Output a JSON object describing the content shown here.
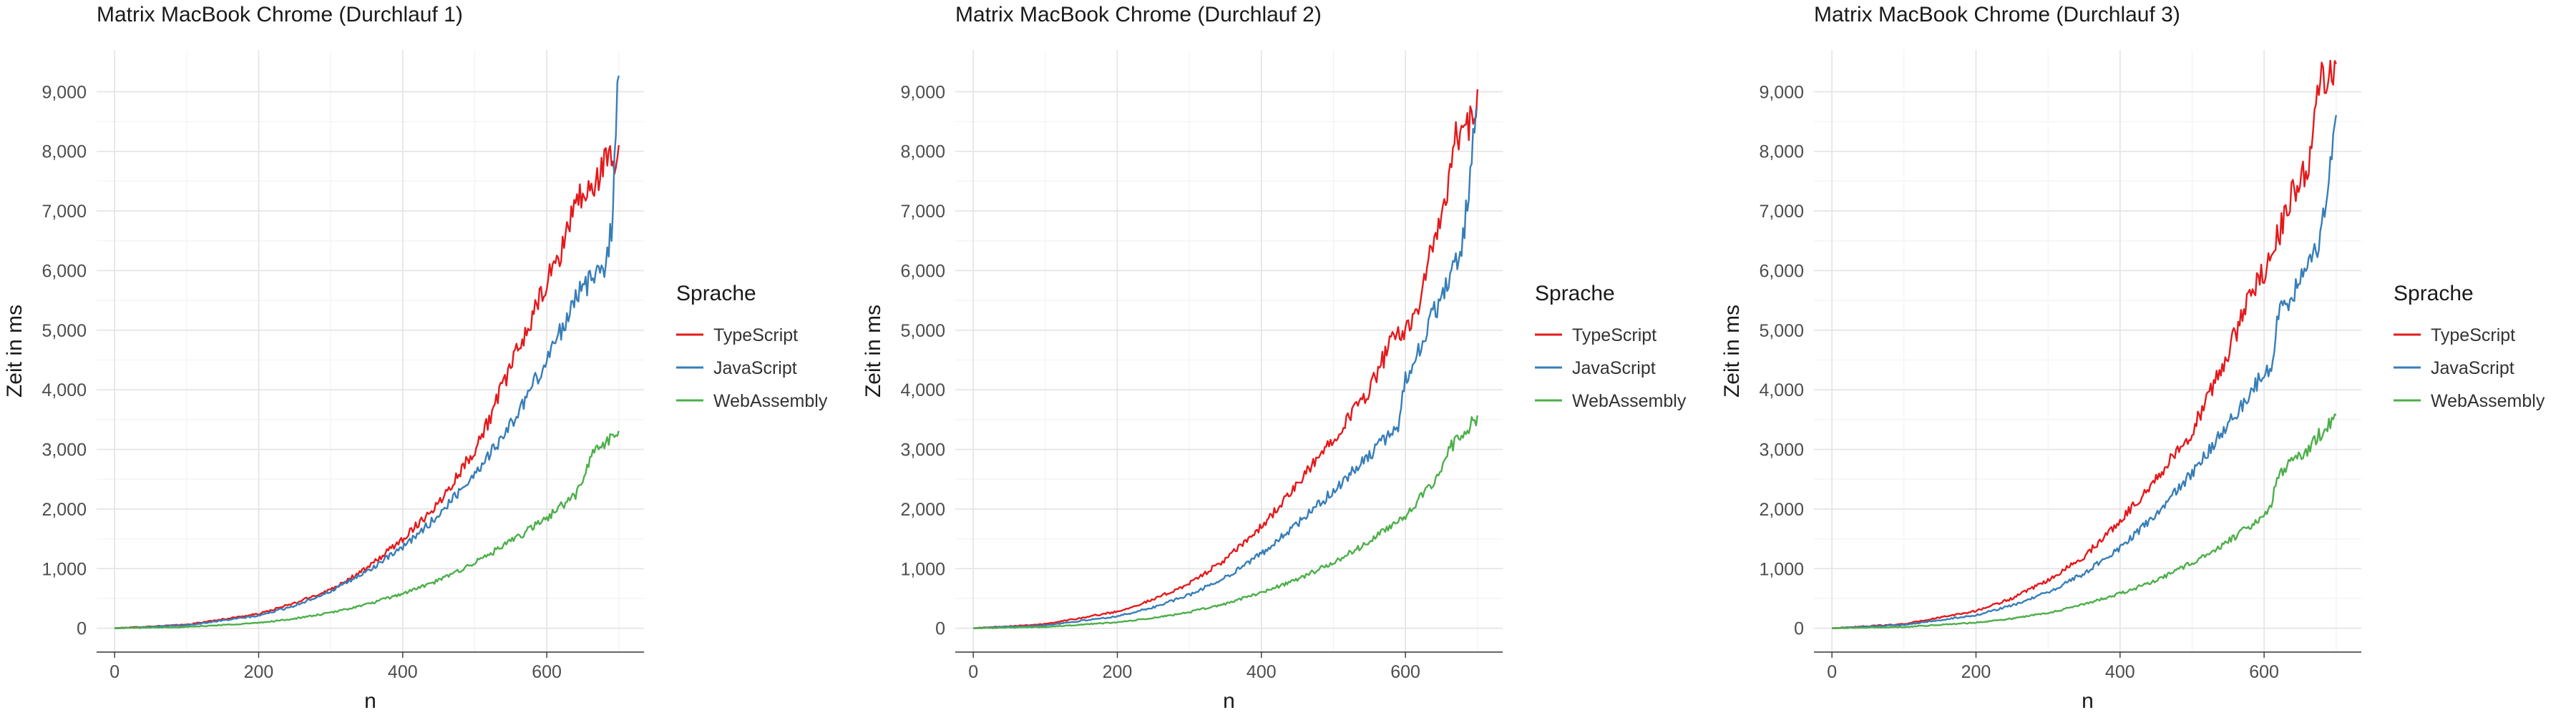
{
  "chart_data": [
    {
      "type": "line",
      "title": "Matrix MacBook Chrome (Durchlauf 1)",
      "xlabel": "n",
      "ylabel": "Zeit in ms",
      "xlim": [
        -25,
        735
      ],
      "ylim": [
        -400,
        9700
      ],
      "xticks": [
        0,
        200,
        400,
        600
      ],
      "xtick_labels": [
        "0",
        "200",
        "400",
        "600"
      ],
      "yticks": [
        0,
        1000,
        2000,
        3000,
        4000,
        5000,
        6000,
        7000,
        8000,
        9000
      ],
      "ytick_labels": [
        "0",
        "1,000",
        "2,000",
        "3,000",
        "4,000",
        "5,000",
        "6,000",
        "7,000",
        "8,000",
        "9,000"
      ],
      "grid": true,
      "legend": {
        "title": "Sprache",
        "position": "right"
      },
      "series": [
        {
          "name": "TypeScript",
          "color": "#e41a1c",
          "x": [
            0,
            100,
            200,
            250,
            300,
            350,
            400,
            450,
            500,
            520,
            550,
            580,
            600,
            620,
            640,
            660,
            680,
            700
          ],
          "y": [
            0,
            60,
            240,
            420,
            650,
            1000,
            1500,
            2100,
            3000,
            3500,
            4400,
            5200,
            5800,
            6300,
            7200,
            7300,
            7800,
            7900
          ]
        },
        {
          "name": "JavaScript",
          "color": "#377eb8",
          "x": [
            0,
            100,
            200,
            250,
            300,
            350,
            400,
            450,
            500,
            550,
            600,
            620,
            640,
            660,
            680,
            690,
            700
          ],
          "y": [
            0,
            50,
            210,
            380,
            620,
            950,
            1350,
            1900,
            2600,
            3400,
            4500,
            5000,
            5600,
            5800,
            6100,
            6700,
            9400
          ]
        },
        {
          "name": "WebAssembly",
          "color": "#4daf4a",
          "x": [
            0,
            100,
            200,
            250,
            300,
            350,
            400,
            450,
            500,
            550,
            600,
            640,
            650,
            660,
            680,
            700
          ],
          "y": [
            0,
            20,
            90,
            160,
            260,
            400,
            580,
            800,
            1100,
            1450,
            1850,
            2250,
            2400,
            2900,
            3100,
            3250
          ]
        }
      ]
    },
    {
      "type": "line",
      "title": "Matrix MacBook Chrome (Durchlauf 2)",
      "xlabel": "n",
      "ylabel": "Zeit in ms",
      "xlim": [
        -25,
        735
      ],
      "ylim": [
        -400,
        9700
      ],
      "xticks": [
        0,
        200,
        400,
        600
      ],
      "xtick_labels": [
        "0",
        "200",
        "400",
        "600"
      ],
      "yticks": [
        0,
        1000,
        2000,
        3000,
        4000,
        5000,
        6000,
        7000,
        8000,
        9000
      ],
      "ytick_labels": [
        "0",
        "1,000",
        "2,000",
        "3,000",
        "4,000",
        "5,000",
        "6,000",
        "7,000",
        "8,000",
        "9,000"
      ],
      "grid": true,
      "legend": {
        "title": "Sprache",
        "position": "right"
      },
      "series": [
        {
          "name": "TypeScript",
          "color": "#e41a1c",
          "x": [
            0,
            100,
            200,
            250,
            300,
            350,
            400,
            450,
            500,
            550,
            580,
            600,
            620,
            640,
            660,
            670,
            680,
            700
          ],
          "y": [
            0,
            70,
            280,
            480,
            750,
            1150,
            1700,
            2400,
            3200,
            4000,
            4800,
            5000,
            5500,
            6500,
            7400,
            8300,
            8200,
            8800
          ]
        },
        {
          "name": "JavaScript",
          "color": "#377eb8",
          "x": [
            0,
            100,
            200,
            250,
            300,
            350,
            400,
            450,
            500,
            550,
            590,
            600,
            620,
            640,
            660,
            680,
            700
          ],
          "y": [
            0,
            50,
            200,
            350,
            560,
            850,
            1250,
            1750,
            2300,
            2900,
            3400,
            4200,
            4700,
            5300,
            5800,
            6500,
            8800
          ]
        },
        {
          "name": "WebAssembly",
          "color": "#4daf4a",
          "x": [
            0,
            100,
            200,
            250,
            300,
            350,
            400,
            450,
            500,
            550,
            600,
            630,
            650,
            660,
            680,
            700
          ],
          "y": [
            0,
            20,
            100,
            170,
            270,
            410,
            600,
            820,
            1100,
            1450,
            1900,
            2300,
            2600,
            3000,
            3300,
            3500
          ]
        }
      ]
    },
    {
      "type": "line",
      "title": "Matrix MacBook Chrome (Durchlauf 3)",
      "xlabel": "n",
      "ylabel": "Zeit in ms",
      "xlim": [
        -25,
        735
      ],
      "ylim": [
        -400,
        9700
      ],
      "xticks": [
        0,
        200,
        400,
        600
      ],
      "xtick_labels": [
        "0",
        "200",
        "400",
        "600"
      ],
      "yticks": [
        0,
        1000,
        2000,
        3000,
        4000,
        5000,
        6000,
        7000,
        8000,
        9000
      ],
      "ytick_labels": [
        "0",
        "1,000",
        "2,000",
        "3,000",
        "4,000",
        "5,000",
        "6,000",
        "7,000",
        "8,000",
        "9,000"
      ],
      "grid": true,
      "legend": {
        "title": "Sprache",
        "position": "right"
      },
      "series": [
        {
          "name": "TypeScript",
          "color": "#e41a1c",
          "x": [
            0,
            100,
            200,
            250,
            300,
            350,
            400,
            450,
            500,
            550,
            580,
            600,
            620,
            640,
            660,
            680,
            700
          ],
          "y": [
            0,
            70,
            290,
            500,
            800,
            1200,
            1800,
            2500,
            3300,
            4600,
            5600,
            6000,
            6600,
            7300,
            7700,
            9300,
            9200
          ]
        },
        {
          "name": "JavaScript",
          "color": "#377eb8",
          "x": [
            0,
            100,
            200,
            250,
            300,
            350,
            400,
            450,
            500,
            550,
            600,
            610,
            620,
            640,
            660,
            680,
            700
          ],
          "y": [
            0,
            55,
            220,
            380,
            600,
            920,
            1350,
            1900,
            2600,
            3400,
            4300,
            4400,
            5300,
            5600,
            6000,
            6600,
            8700
          ]
        },
        {
          "name": "WebAssembly",
          "color": "#4daf4a",
          "x": [
            0,
            100,
            200,
            250,
            300,
            350,
            400,
            450,
            500,
            550,
            600,
            610,
            620,
            640,
            660,
            680,
            700
          ],
          "y": [
            0,
            20,
            95,
            160,
            260,
            400,
            580,
            800,
            1100,
            1450,
            1900,
            2100,
            2600,
            2800,
            3000,
            3300,
            3500
          ]
        }
      ]
    }
  ]
}
